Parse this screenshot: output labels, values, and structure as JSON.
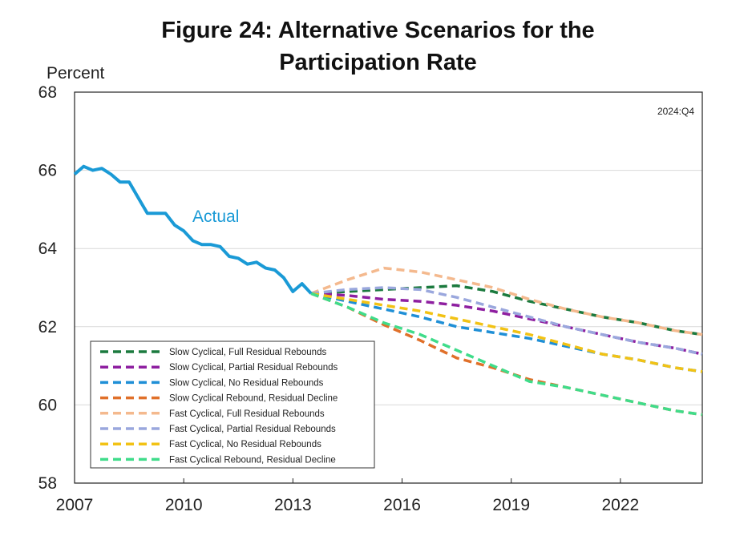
{
  "chart_data": {
    "type": "line",
    "title_line1": "Figure 24: Alternative Scenarios for the",
    "title_line2": "Participation Rate",
    "ylabel": "Percent",
    "xlabel": "",
    "xlim": [
      2007,
      2024.25
    ],
    "ylim": [
      58,
      68
    ],
    "x_ticks": [
      2007,
      2010,
      2013,
      2016,
      2019,
      2022
    ],
    "y_ticks": [
      58,
      60,
      62,
      64,
      66,
      68
    ],
    "grid": "horizontal",
    "legend_position": "bottom-left",
    "annotation": "2024:Q4",
    "actual": {
      "name": "Actual",
      "color": "#1a9ad6",
      "x": [
        2007.0,
        2007.25,
        2007.5,
        2007.75,
        2008.0,
        2008.25,
        2008.5,
        2008.75,
        2009.0,
        2009.25,
        2009.5,
        2009.75,
        2010.0,
        2010.25,
        2010.5,
        2010.75,
        2011.0,
        2011.25,
        2011.5,
        2011.75,
        2012.0,
        2012.25,
        2012.5,
        2012.75,
        2013.0,
        2013.25,
        2013.5
      ],
      "y": [
        65.9,
        66.1,
        66.0,
        66.05,
        65.9,
        65.7,
        65.7,
        65.3,
        64.9,
        64.9,
        64.9,
        64.6,
        64.45,
        64.2,
        64.1,
        64.1,
        64.05,
        63.8,
        63.75,
        63.6,
        63.65,
        63.5,
        63.45,
        63.25,
        62.9,
        63.1,
        62.85
      ]
    },
    "series": [
      {
        "name": "Slow Cyclical, Full Residual Rebounds",
        "color": "#1b7a3e",
        "x": [
          2013.5,
          2014.5,
          2015.5,
          2016.5,
          2017.5,
          2018.5,
          2019.5,
          2020.5,
          2021.5,
          2022.5,
          2023.5,
          2024.25
        ],
        "y": [
          62.85,
          62.9,
          62.95,
          63.0,
          63.05,
          62.9,
          62.65,
          62.45,
          62.25,
          62.1,
          61.9,
          61.8
        ]
      },
      {
        "name": "Slow Cyclical, Partial Residual Rebounds",
        "color": "#8e1fa0",
        "x": [
          2013.5,
          2014.5,
          2015.5,
          2016.5,
          2017.5,
          2018.5,
          2019.5,
          2020.5,
          2021.5,
          2022.5,
          2023.5,
          2024.25
        ],
        "y": [
          62.85,
          62.8,
          62.7,
          62.65,
          62.55,
          62.4,
          62.2,
          62.0,
          61.8,
          61.6,
          61.45,
          61.3
        ]
      },
      {
        "name": "Slow Cyclical, No Residual Rebounds",
        "color": "#1f8fd6",
        "x": [
          2013.5,
          2014.5,
          2015.5,
          2016.5,
          2017.5,
          2018.5,
          2019.5,
          2020.5,
          2021.5,
          2022.5,
          2023.5,
          2024.25
        ],
        "y": [
          62.85,
          62.65,
          62.45,
          62.25,
          62.0,
          61.85,
          61.7,
          61.5,
          61.3,
          61.15,
          60.95,
          60.85
        ]
      },
      {
        "name": "Slow Cyclical Rebound, Residual Decline",
        "color": "#e0702a",
        "x": [
          2013.5,
          2014.5,
          2015.5,
          2016.5,
          2017.5,
          2018.5,
          2019.5,
          2020.5,
          2021.5,
          2022.5,
          2023.5,
          2024.25
        ],
        "y": [
          62.85,
          62.5,
          62.05,
          61.65,
          61.2,
          60.95,
          60.65,
          60.45,
          60.25,
          60.05,
          59.85,
          59.75
        ]
      },
      {
        "name": "Fast Cyclical, Full Residual Rebounds",
        "color": "#f4b98e",
        "x": [
          2013.5,
          2014.5,
          2015.5,
          2016.5,
          2017.5,
          2018.5,
          2019.5,
          2020.5,
          2021.5,
          2022.5,
          2023.5,
          2024.25
        ],
        "y": [
          62.85,
          63.2,
          63.5,
          63.4,
          63.2,
          63.0,
          62.7,
          62.45,
          62.25,
          62.1,
          61.9,
          61.8
        ]
      },
      {
        "name": "Fast Cyclical, Partial Residual Rebounds",
        "color": "#9aa7dd",
        "x": [
          2013.5,
          2014.5,
          2015.5,
          2016.5,
          2017.5,
          2018.5,
          2019.5,
          2020.5,
          2021.5,
          2022.5,
          2023.5,
          2024.25
        ],
        "y": [
          62.85,
          62.95,
          63.0,
          62.95,
          62.75,
          62.5,
          62.25,
          62.0,
          61.8,
          61.6,
          61.45,
          61.3
        ]
      },
      {
        "name": "Fast Cyclical, No Residual Rebounds",
        "color": "#f2c214",
        "x": [
          2013.5,
          2014.5,
          2015.5,
          2016.5,
          2017.5,
          2018.5,
          2019.5,
          2020.5,
          2021.5,
          2022.5,
          2023.5,
          2024.25
        ],
        "y": [
          62.85,
          62.7,
          62.55,
          62.4,
          62.2,
          62.0,
          61.8,
          61.55,
          61.3,
          61.15,
          60.95,
          60.85
        ]
      },
      {
        "name": "Fast Cyclical Rebound, Residual Decline",
        "color": "#3fdc8a",
        "x": [
          2013.5,
          2014.5,
          2015.5,
          2016.5,
          2017.5,
          2018.5,
          2019.5,
          2020.5,
          2021.5,
          2022.5,
          2023.5,
          2024.25
        ],
        "y": [
          62.85,
          62.5,
          62.1,
          61.8,
          61.4,
          61.0,
          60.6,
          60.45,
          60.25,
          60.05,
          59.85,
          59.75
        ]
      }
    ]
  }
}
